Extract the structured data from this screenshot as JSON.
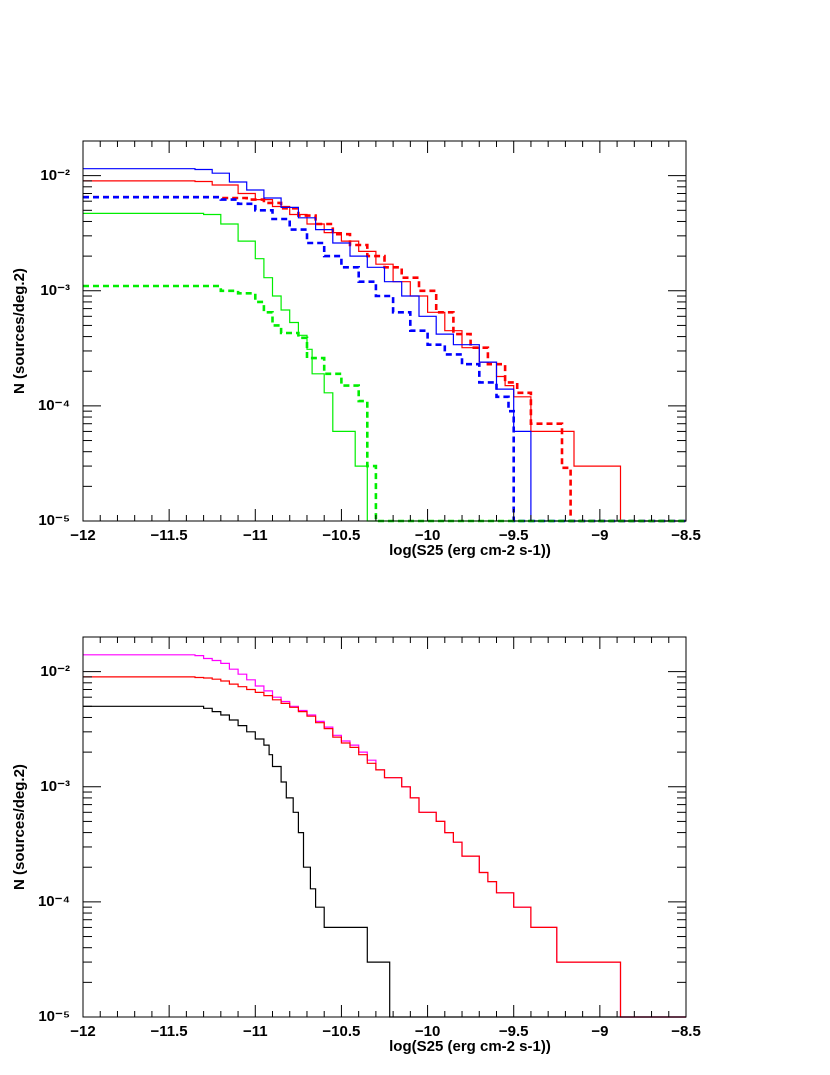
{
  "chart_data": [
    {
      "type": "line",
      "xlim": [
        -12,
        -8.5
      ],
      "ylim": [
        1e-05,
        0.02
      ],
      "yscale": "log",
      "grid": false,
      "xlabel": "log(S25 (erg cm-2 s-1))",
      "ylabel": "N (sources/deg.2)",
      "x_ticks": [
        "−12",
        "−11.5",
        "−11",
        "−10.5",
        "−10",
        "−9.5",
        "−9",
        "−8.5"
      ],
      "y_ticks": [
        "10⁻⁵",
        "10⁻⁴",
        "10⁻³",
        "10⁻²"
      ],
      "series": [
        {
          "color": "#ff0000",
          "dash": false,
          "steps": [
            [
              -12,
              0.009
            ],
            [
              -11.35,
              0.0089
            ],
            [
              -11.25,
              0.0083
            ],
            [
              -11.1,
              0.007
            ],
            [
              -11,
              0.0062
            ],
            [
              -10.9,
              0.0054
            ],
            [
              -10.8,
              0.0046
            ],
            [
              -10.7,
              0.0038
            ],
            [
              -10.6,
              0.0032
            ],
            [
              -10.5,
              0.0027
            ],
            [
              -10.4,
              0.0022
            ],
            [
              -10.3,
              0.0017
            ],
            [
              -10.2,
              0.0012
            ],
            [
              -10.1,
              0.0009
            ],
            [
              -10,
              0.00065
            ],
            [
              -9.9,
              0.00045
            ],
            [
              -9.8,
              0.00032
            ],
            [
              -9.7,
              0.00024
            ],
            [
              -9.6,
              0.00018
            ],
            [
              -9.55,
              0.00015
            ],
            [
              -9.5,
              0.00012
            ],
            [
              -9.4,
              6e-05
            ],
            [
              -9.15,
              3e-05
            ],
            [
              -8.88,
              1e-05
            ],
            [
              -8.5,
              1e-05
            ]
          ]
        },
        {
          "color": "#ff0000",
          "dash": true,
          "steps": [
            [
              -12,
              0.0065
            ],
            [
              -11.35,
              0.0065
            ],
            [
              -11.2,
              0.0064
            ],
            [
              -11.05,
              0.0062
            ],
            [
              -10.95,
              0.0058
            ],
            [
              -10.85,
              0.0052
            ],
            [
              -10.75,
              0.0045
            ],
            [
              -10.65,
              0.0038
            ],
            [
              -10.55,
              0.0031
            ],
            [
              -10.45,
              0.0025
            ],
            [
              -10.35,
              0.002
            ],
            [
              -10.25,
              0.0016
            ],
            [
              -10.15,
              0.0013
            ],
            [
              -10.05,
              0.001
            ],
            [
              -9.95,
              0.00065
            ],
            [
              -9.85,
              0.00042
            ],
            [
              -9.75,
              0.00032
            ],
            [
              -9.65,
              0.00023
            ],
            [
              -9.55,
              0.00016
            ],
            [
              -9.48,
              0.00013
            ],
            [
              -9.4,
              7e-05
            ],
            [
              -9.22,
              2.9e-05
            ],
            [
              -9.17,
              1e-05
            ],
            [
              -8.5,
              1e-05
            ]
          ]
        },
        {
          "color": "#0000ff",
          "dash": false,
          "steps": [
            [
              -12,
              0.0115
            ],
            [
              -11.35,
              0.0113
            ],
            [
              -11.25,
              0.0105
            ],
            [
              -11.15,
              0.0088
            ],
            [
              -11.05,
              0.0075
            ],
            [
              -10.95,
              0.0064
            ],
            [
              -10.85,
              0.0053
            ],
            [
              -10.75,
              0.0043
            ],
            [
              -10.65,
              0.0034
            ],
            [
              -10.55,
              0.0026
            ],
            [
              -10.45,
              0.002
            ],
            [
              -10.35,
              0.0016
            ],
            [
              -10.25,
              0.0012
            ],
            [
              -10.15,
              0.0009
            ],
            [
              -10.05,
              0.0006
            ],
            [
              -9.95,
              0.00042
            ],
            [
              -9.85,
              0.00034
            ],
            [
              -9.7,
              0.00024
            ],
            [
              -9.6,
              0.00014
            ],
            [
              -9.5,
              6e-05
            ],
            [
              -9.4,
              1e-05
            ],
            [
              -8.5,
              1e-05
            ]
          ]
        },
        {
          "color": "#0000ff",
          "dash": true,
          "steps": [
            [
              -12,
              0.0065
            ],
            [
              -11.35,
              0.0065
            ],
            [
              -11.2,
              0.0062
            ],
            [
              -11.1,
              0.0057
            ],
            [
              -11,
              0.005
            ],
            [
              -10.9,
              0.0042
            ],
            [
              -10.8,
              0.0034
            ],
            [
              -10.7,
              0.0026
            ],
            [
              -10.6,
              0.002
            ],
            [
              -10.5,
              0.0016
            ],
            [
              -10.4,
              0.0012
            ],
            [
              -10.3,
              0.0009
            ],
            [
              -10.2,
              0.00065
            ],
            [
              -10.1,
              0.00045
            ],
            [
              -10,
              0.00034
            ],
            [
              -9.9,
              0.00028
            ],
            [
              -9.8,
              0.00023
            ],
            [
              -9.7,
              0.00016
            ],
            [
              -9.6,
              0.00012
            ],
            [
              -9.53,
              9e-05
            ],
            [
              -9.5,
              1e-05
            ],
            [
              -8.5,
              1e-05
            ]
          ]
        },
        {
          "color": "#00ee00",
          "dash": false,
          "steps": [
            [
              -12,
              0.0047
            ],
            [
              -11.3,
              0.0046
            ],
            [
              -11.2,
              0.0038
            ],
            [
              -11.1,
              0.0027
            ],
            [
              -11,
              0.0019
            ],
            [
              -10.95,
              0.0013
            ],
            [
              -10.9,
              0.0009
            ],
            [
              -10.85,
              0.00068
            ],
            [
              -10.8,
              0.00053
            ],
            [
              -10.75,
              0.00041
            ],
            [
              -10.7,
              0.00031
            ],
            [
              -10.67,
              0.00019
            ],
            [
              -10.6,
              0.00013
            ],
            [
              -10.55,
              6e-05
            ],
            [
              -10.42,
              3e-05
            ],
            [
              -10.35,
              1e-05
            ],
            [
              -8.5,
              1e-05
            ]
          ]
        },
        {
          "color": "#00ee00",
          "dash": true,
          "steps": [
            [
              -12,
              0.0011
            ],
            [
              -11.3,
              0.0011
            ],
            [
              -11.2,
              0.001
            ],
            [
              -11.1,
              0.00095
            ],
            [
              -11,
              0.0008
            ],
            [
              -10.95,
              0.00065
            ],
            [
              -10.9,
              0.0005
            ],
            [
              -10.85,
              0.00043
            ],
            [
              -10.75,
              0.00039
            ],
            [
              -10.7,
              0.00026
            ],
            [
              -10.6,
              0.00019
            ],
            [
              -10.5,
              0.00015
            ],
            [
              -10.4,
              0.00011
            ],
            [
              -10.35,
              3e-05
            ],
            [
              -10.3,
              1e-05
            ],
            [
              -8.5,
              1e-05
            ]
          ]
        }
      ]
    },
    {
      "type": "line",
      "xlim": [
        -12,
        -8.5
      ],
      "ylim": [
        1e-05,
        0.02
      ],
      "yscale": "log",
      "grid": false,
      "xlabel": "log(S25 (erg cm-2 s-1))",
      "ylabel": "N (sources/deg.2)",
      "x_ticks": [
        "−12",
        "−11.5",
        "−11",
        "−10.5",
        "−10",
        "−9.5",
        "−9",
        "−8.5"
      ],
      "y_ticks": [
        "10⁻⁵",
        "10⁻⁴",
        "10⁻³",
        "10⁻²"
      ],
      "series": [
        {
          "color": "#ff00ff",
          "dash": false,
          "steps": [
            [
              -12,
              0.014
            ],
            [
              -11.35,
              0.0138
            ],
            [
              -11.3,
              0.013
            ],
            [
              -11.25,
              0.0125
            ],
            [
              -11.2,
              0.0118
            ],
            [
              -11.15,
              0.0105
            ],
            [
              -11.1,
              0.0095
            ],
            [
              -11.05,
              0.0085
            ],
            [
              -11,
              0.0075
            ],
            [
              -10.95,
              0.0068
            ],
            [
              -10.9,
              0.006
            ],
            [
              -10.85,
              0.0055
            ],
            [
              -10.8,
              0.005
            ],
            [
              -10.75,
              0.0046
            ],
            [
              -10.7,
              0.0042
            ],
            [
              -10.65,
              0.0037
            ],
            [
              -10.6,
              0.0033
            ],
            [
              -10.55,
              0.0028
            ],
            [
              -10.5,
              0.0025
            ],
            [
              -10.45,
              0.0023
            ],
            [
              -10.4,
              0.002
            ],
            [
              -10.35,
              0.0017
            ],
            [
              -10.3,
              0.0014
            ],
            [
              -10.25,
              0.0012
            ],
            [
              -10.15,
              0.001
            ],
            [
              -10.1,
              0.0008
            ],
            [
              -10.05,
              0.0006
            ],
            [
              -9.95,
              0.0005
            ],
            [
              -9.9,
              0.0004
            ],
            [
              -9.85,
              0.00033
            ],
            [
              -9.8,
              0.00025
            ],
            [
              -9.7,
              0.00018
            ],
            [
              -9.65,
              0.00015
            ],
            [
              -9.6,
              0.00012
            ],
            [
              -9.5,
              9e-05
            ],
            [
              -9.4,
              6e-05
            ],
            [
              -9.25,
              3e-05
            ],
            [
              -8.88,
              1e-05
            ],
            [
              -8.5,
              1e-05
            ]
          ]
        },
        {
          "color": "#ff0000",
          "dash": false,
          "steps": [
            [
              -12,
              0.009
            ],
            [
              -11.35,
              0.0089
            ],
            [
              -11.3,
              0.0088
            ],
            [
              -11.25,
              0.0086
            ],
            [
              -11.2,
              0.0083
            ],
            [
              -11.15,
              0.0078
            ],
            [
              -11.1,
              0.0074
            ],
            [
              -11.05,
              0.007
            ],
            [
              -11,
              0.0066
            ],
            [
              -10.95,
              0.0062
            ],
            [
              -10.9,
              0.0057
            ],
            [
              -10.85,
              0.0053
            ],
            [
              -10.8,
              0.0049
            ],
            [
              -10.75,
              0.0045
            ],
            [
              -10.7,
              0.0041
            ],
            [
              -10.65,
              0.0036
            ],
            [
              -10.6,
              0.0032
            ],
            [
              -10.55,
              0.0027
            ],
            [
              -10.5,
              0.0024
            ],
            [
              -10.45,
              0.0022
            ],
            [
              -10.4,
              0.0019
            ],
            [
              -10.35,
              0.0016
            ],
            [
              -10.3,
              0.0014
            ],
            [
              -10.25,
              0.0012
            ],
            [
              -10.15,
              0.001
            ],
            [
              -10.1,
              0.0008
            ],
            [
              -10.05,
              0.0006
            ],
            [
              -9.95,
              0.0005
            ],
            [
              -9.9,
              0.0004
            ],
            [
              -9.85,
              0.00033
            ],
            [
              -9.8,
              0.00025
            ],
            [
              -9.7,
              0.00018
            ],
            [
              -9.65,
              0.00015
            ],
            [
              -9.6,
              0.00012
            ],
            [
              -9.5,
              9e-05
            ],
            [
              -9.4,
              6e-05
            ],
            [
              -9.25,
              3e-05
            ],
            [
              -8.88,
              1e-05
            ],
            [
              -8.5,
              1e-05
            ]
          ]
        },
        {
          "color": "#000000",
          "dash": false,
          "steps": [
            [
              -12,
              0.005
            ],
            [
              -11.35,
              0.005
            ],
            [
              -11.3,
              0.0048
            ],
            [
              -11.25,
              0.0045
            ],
            [
              -11.2,
              0.0042
            ],
            [
              -11.15,
              0.0038
            ],
            [
              -11.1,
              0.0034
            ],
            [
              -11.05,
              0.003
            ],
            [
              -11,
              0.0026
            ],
            [
              -10.95,
              0.0023
            ],
            [
              -10.92,
              0.0019
            ],
            [
              -10.9,
              0.0015
            ],
            [
              -10.85,
              0.0011
            ],
            [
              -10.82,
              0.0008
            ],
            [
              -10.78,
              0.0006
            ],
            [
              -10.75,
              0.0004
            ],
            [
              -10.72,
              0.0002
            ],
            [
              -10.68,
              0.00013
            ],
            [
              -10.65,
              9e-05
            ],
            [
              -10.6,
              6e-05
            ],
            [
              -10.35,
              3e-05
            ],
            [
              -10.22,
              1e-05
            ],
            [
              -8.5,
              1e-05
            ]
          ]
        }
      ]
    }
  ]
}
